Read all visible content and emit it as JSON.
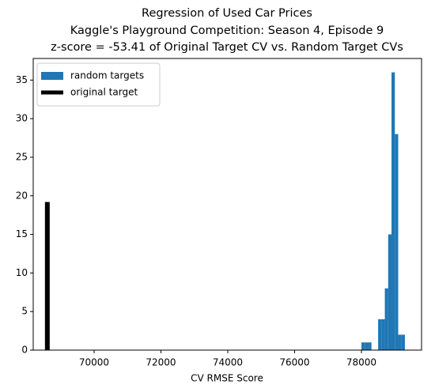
{
  "chart_data": {
    "type": "histogram",
    "title": [
      "Regression of Used Car Prices",
      "Kaggle's Playground Competition: Season 4, Episode 9",
      "z-score = -53.41 of Original Target CV vs. Random Target CVs"
    ],
    "xlabel": "CV RMSE Score",
    "bins": [
      78000,
      78100,
      78200,
      78300,
      78400,
      78500,
      78600,
      78700,
      78800,
      78900,
      79000,
      79100,
      79200,
      79300
    ],
    "series": [
      {
        "name": "random targets",
        "color": "#1f77b4",
        "values": [
          1,
          1,
          1,
          0,
          0,
          4,
          4,
          8,
          15,
          36,
          28,
          2,
          2
        ]
      }
    ],
    "lines": [
      {
        "name": "original target",
        "color": "#000000",
        "x": 68600,
        "height": 19.2
      }
    ],
    "xlim": [
      68178,
      79799
    ],
    "ylim": [
      0,
      37.8
    ],
    "xticks": [
      70000,
      72000,
      74000,
      76000,
      78000
    ],
    "yticks": [
      0,
      5,
      10,
      15,
      20,
      25,
      30,
      35
    ],
    "legend": "upper left"
  }
}
